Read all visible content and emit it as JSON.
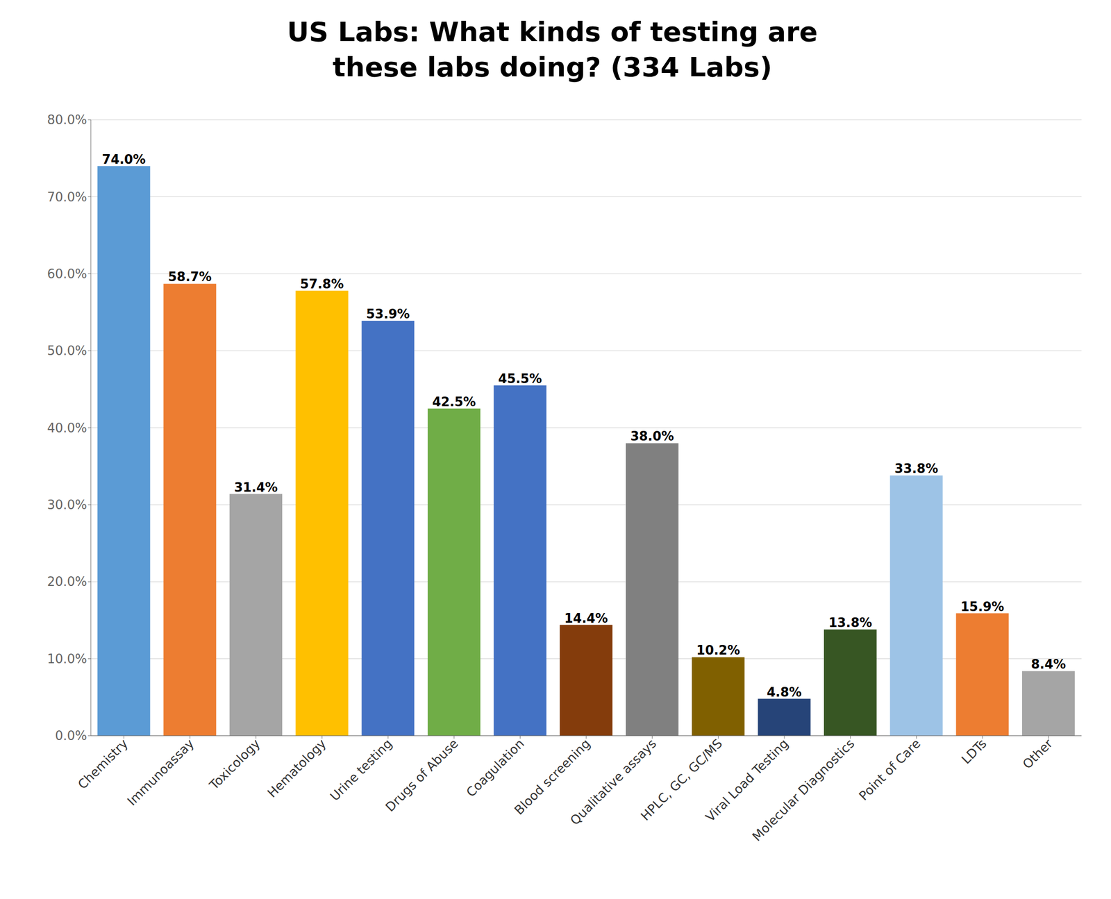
{
  "chart_data": {
    "type": "bar",
    "title": "US Labs: What kinds of testing are\nthese labs doing? (334 Labs)",
    "categories": [
      "Chemistry",
      "Immunoassay",
      "Toxicology",
      "Hematology",
      "Urine testing",
      "Drugs of Abuse",
      "Coagulation",
      "Blood screening",
      "Qualitative assays",
      "HPLC, GC, GC/MS",
      "Viral Load Testing",
      "Molecular Diagnostics",
      "Point of Care",
      "LDTs",
      "Other"
    ],
    "values": [
      74.0,
      58.7,
      31.4,
      57.8,
      53.9,
      42.5,
      45.5,
      14.4,
      38.0,
      10.2,
      4.8,
      13.8,
      33.8,
      15.9,
      8.4
    ],
    "value_labels": [
      "74.0%",
      "58.7%",
      "31.4%",
      "57.8%",
      "53.9%",
      "42.5%",
      "45.5%",
      "14.4%",
      "38.0%",
      "10.2%",
      "4.8%",
      "13.8%",
      "33.8%",
      "15.9%",
      "8.4%"
    ],
    "data_labels": true,
    "colors": [
      "#5B9BD5",
      "#ED7D31",
      "#A5A5A5",
      "#FFC000",
      "#4472C4",
      "#70AD47",
      "#4472C4",
      "#843C0C",
      "#808080",
      "#806000",
      "#264478",
      "#375623",
      "#9DC3E6",
      "#ED7D31",
      "#A5A5A5"
    ],
    "ylim": [
      0,
      80
    ],
    "yticks": [
      {
        "value": 0,
        "label": "0.0%"
      },
      {
        "value": 10,
        "label": "10.0%"
      },
      {
        "value": 20,
        "label": "20.0%"
      },
      {
        "value": 30,
        "label": "30.0%"
      },
      {
        "value": 40,
        "label": "40.0%"
      },
      {
        "value": 50,
        "label": "50.0%"
      },
      {
        "value": 60,
        "label": "60.0%"
      },
      {
        "value": 70,
        "label": "70.0%"
      },
      {
        "value": 80,
        "label": "80.0%"
      }
    ],
    "grid": true
  }
}
